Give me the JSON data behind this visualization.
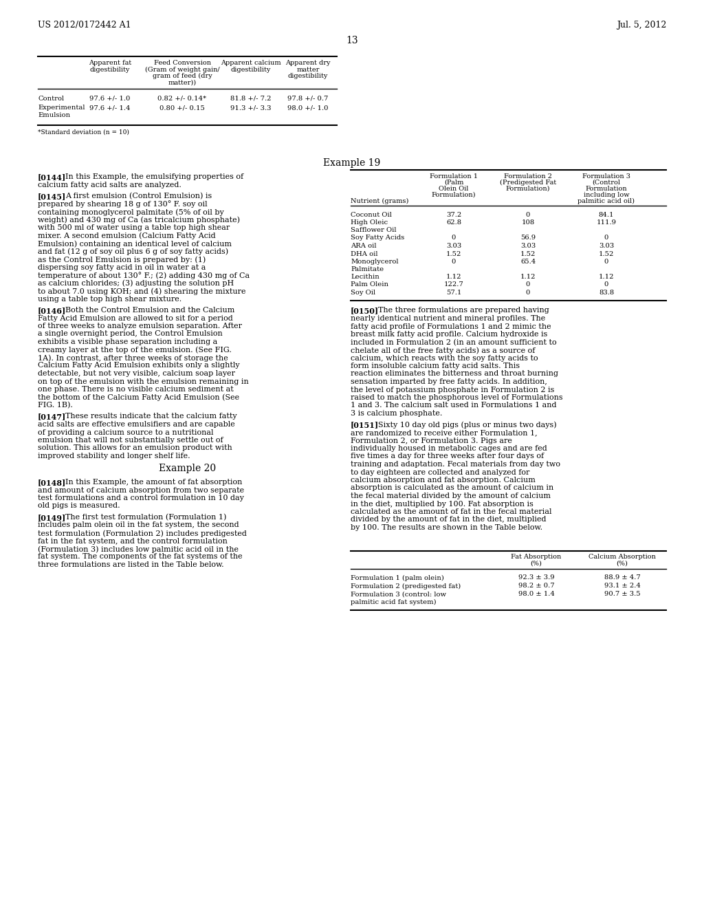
{
  "page_number": "13",
  "patent_left": "US 2012/0172442 A1",
  "patent_right": "Jul. 5, 2012",
  "background_color": "#ffffff",
  "table1": {
    "headers": [
      "",
      "Apparent fat\ndigestibility",
      "Feed Conversion\n(Gram of weight gain/\ngram of feed (dry\nmatter))",
      "Apparent calcium\ndigestibility",
      "Apparent dry\nmatter\ndigestibility"
    ],
    "rows": [
      [
        "Control",
        "97.6 +/- 1.0",
        "0.82 +/- 0.14*",
        "81.8 +/- 7.2",
        "97.8 +/- 0.7"
      ],
      [
        "Experimental\nEmulsion",
        "97.6 +/- 1.4",
        "0.80 +/- 0.15",
        "91.3 +/- 3.3",
        "98.0 +/- 1.0"
      ]
    ],
    "footnote": "*Standard deviation (n = 10)"
  },
  "example19_title": "Example 19",
  "table2": {
    "headers": [
      "Nutrient (grams)",
      "Formulation 1\n(Palm\nOlein Oil\nFormulation)",
      "Formulation 2\n(Predigested Fat\nFormulation)",
      "Formulation 3\n(Control\nFormulation\nincluding low\npalmitic acid oil)"
    ],
    "rows": [
      [
        "Coconut Oil",
        "37.2",
        "0",
        "84.1"
      ],
      [
        "High Oleic\nSafflower Oil",
        "62.8",
        "108",
        "111.9"
      ],
      [
        "Soy Fatty Acids",
        "0",
        "56.9",
        "0"
      ],
      [
        "ARA oil",
        "3.03",
        "3.03",
        "3.03"
      ],
      [
        "DHA oil",
        "1.52",
        "1.52",
        "1.52"
      ],
      [
        "Monoglycerol\nPalmitate",
        "0",
        "65.4",
        "0"
      ],
      [
        "Lecithin",
        "1.12",
        "1.12",
        "1.12"
      ],
      [
        "Palm Olein",
        "122.7",
        "0",
        "0"
      ],
      [
        "Soy Oil",
        "57.1",
        "0",
        "83.8"
      ]
    ]
  },
  "table3": {
    "headers": [
      "",
      "Fat Absorption\n(%)",
      "Calcium Absorption\n(%)"
    ],
    "rows": [
      [
        "Formulation 1 (palm olein)",
        "92.3 ± 3.9",
        "88.9 ± 4.7"
      ],
      [
        "Formulation 2 (predigested fat)",
        "98.2 ± 0.7",
        "93.1 ± 2.4"
      ],
      [
        "Formulation 3 (control: low\npalmitic acid fat system)",
        "98.0 ± 1.4",
        "90.7 ± 3.5"
      ]
    ]
  },
  "left_paragraphs": [
    {
      "tag": "[0144]",
      "text": "In this Example, the emulsifying properties of calcium fatty acid salts are analyzed."
    },
    {
      "tag": "[0145]",
      "text": "A first emulsion (Control Emulsion) is prepared by shearing 18 g of 130° F. soy oil containing monoglycerol palmitate (5% of oil by weight) and 430 mg of Ca (as tricalcium phosphate) with 500 ml of water using a table top high shear mixer. A second emulsion (Calcium Fatty Acid Emulsion) containing an identical level of calcium and fat (12 g of soy oil plus 6 g of soy fatty acids) as the Control Emulsion is prepared by: (1) dispersing soy fatty acid in oil in water at a temperature of about 130° F.; (2) adding 430 mg of Ca as calcium chlorides; (3) adjusting the solution pH to about 7.0 using KOH; and (4) shearing the mixture using a table top high shear mixture."
    },
    {
      "tag": "[0146]",
      "text": "Both the Control Emulsion and the Calcium Fatty Acid Emulsion are allowed to sit for a period of three weeks to analyze emulsion separation. After a single overnight period, the Control Emulsion exhibits a visible phase separation including a creamy layer at the top of the emulsion. (See FIG. 1A). In contrast, after three weeks of storage the Calcium Fatty Acid Emulsion exhibits only a slightly detectable, but not very visible, calcium soap layer on top of the emulsion with the emulsion remaining in one phase. There is no visible calcium sediment at the bottom of the Calcium Fatty Acid Emulsion (See FIG. 1B)."
    },
    {
      "tag": "[0147]",
      "text": "These results indicate that the calcium fatty acid salts are effective emulsifiers and are capable of providing a calcium source to a nutritional emulsion that will not substantially settle out of solution. This allows for an emulsion product with improved stability and longer shelf life."
    },
    {
      "tag": "example20",
      "text": "Example 20"
    },
    {
      "tag": "[0148]",
      "text": "In this Example, the amount of fat absorption and amount of calcium absorption from two separate test formulations and a control formulation in 10 day old pigs is measured."
    },
    {
      "tag": "[0149]",
      "text": "The first test formulation (Formulation 1) includes palm olein oil in the fat system, the second test formulation (Formulation 2) includes predigested fat in the fat system, and the control formulation (Formulation 3) includes low palmitic acid oil in the fat system. The components of the fat systems of the three formulations are listed in the Table below."
    }
  ],
  "right_paragraphs": [
    {
      "tag": "[0150]",
      "text": "The three formulations are prepared having nearly identical nutrient and mineral profiles. The fatty acid profile of Formulations 1 and 2 mimic the breast milk fatty acid profile. Calcium hydroxide is included in Formulation 2 (in an amount sufficient to chelate all of the free fatty acids) as a source of calcium, which reacts with the soy fatty acids to form insoluble calcium fatty acid salts. This reaction eliminates the bitterness and throat burning sensation imparted by free fatty acids. In addition, the level of potassium phosphate in Formulation 2 is raised to match the phosphorous level of Formulations 1 and 3. The calcium salt used in Formulations 1 and 3 is calcium phosphate."
    },
    {
      "tag": "[0151]",
      "text": "Sixty 10 day old pigs (plus or minus two days) are randomized to receive either Formulation 1, Formulation 2, or Formulation 3. Pigs are individually housed in metabolic cages and are fed five times a day for three weeks after four days of training and adaptation. Fecal materials from day two to day eighteen are collected and analyzed for calcium absorption and fat absorption. Calcium absorption is calculated as the amount of calcium in the fecal material divided by the amount of calcium in the diet, multiplied by 100. Fat absorption is calculated as the amount of fat in the fecal material divided by the amount of fat in the diet, multiplied by 100. The results are shown in the Table below."
    }
  ]
}
